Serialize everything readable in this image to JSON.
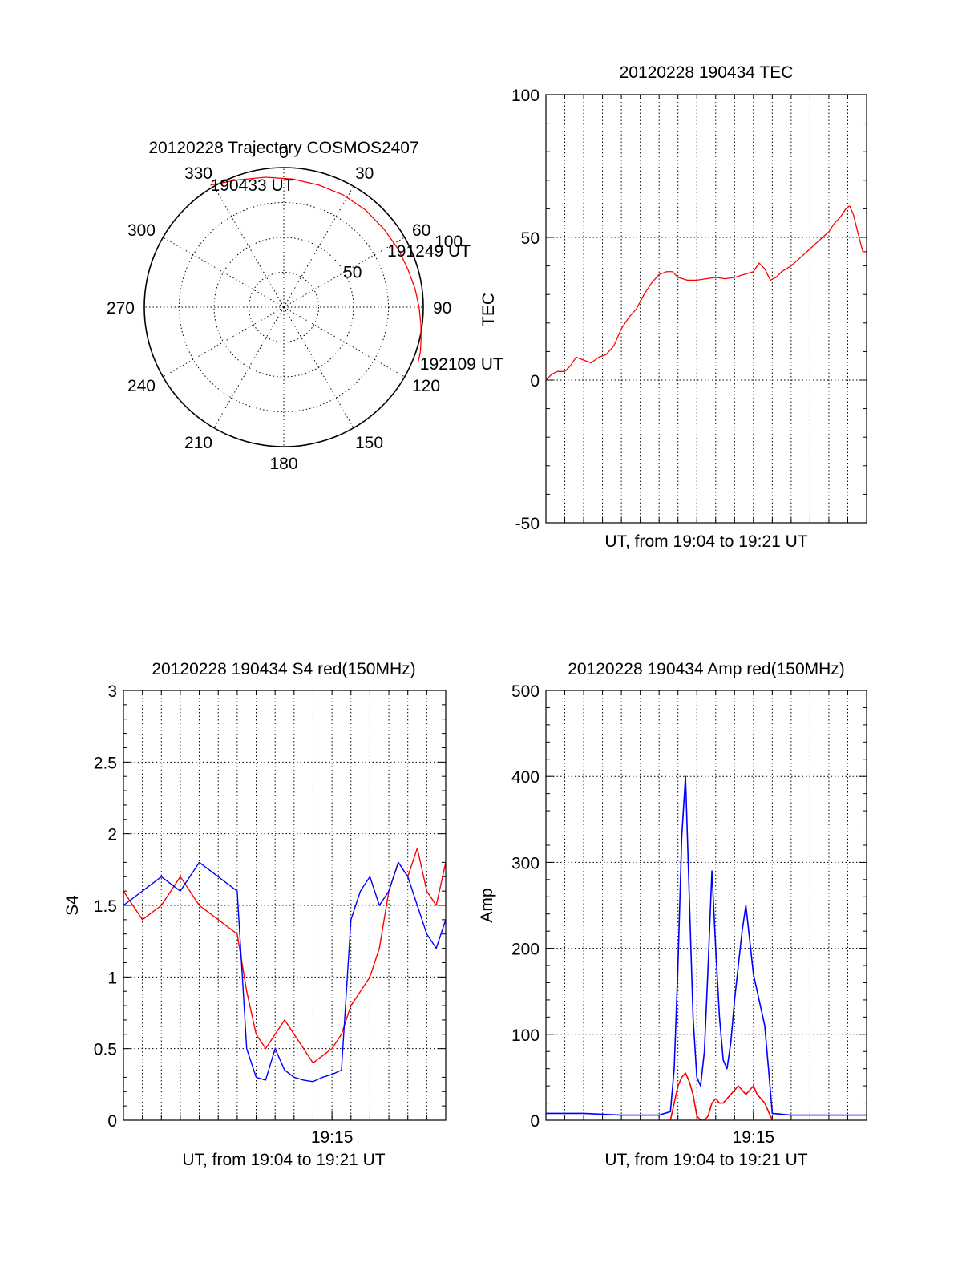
{
  "colors": {
    "red": "#ff0000",
    "blue": "#0000ff",
    "axis": "#000000"
  },
  "chart_data": [
    {
      "type": "polar",
      "title": "20120228 Trajectory COSMOS2407",
      "angle_labels": [
        "0",
        "30",
        "60",
        "90",
        "120",
        "150",
        "180",
        "210",
        "240",
        "270",
        "300",
        "330"
      ],
      "radial_labels": [
        "50",
        "100"
      ],
      "radial_range": [
        0,
        100
      ],
      "grid": true,
      "series": [
        {
          "color": "#ff0000",
          "azimuth_deg": [
            329,
            340,
            352,
            4,
            16,
            28,
            40,
            52,
            63,
            73,
            82,
            90,
            97,
            103,
            108,
            112
          ],
          "radius": [
            102,
            97,
            94,
            92,
            91,
            91,
            91,
            91,
            92,
            93,
            95,
            97,
            99,
            101,
            103,
            104
          ]
        }
      ],
      "annotations": [
        {
          "text": "190433 UT",
          "azimuth_deg": 329,
          "radius": 102
        },
        {
          "text": "191249 UT",
          "azimuth_deg": 60,
          "radius": 91
        },
        {
          "text": "192109 UT",
          "azimuth_deg": 112,
          "radius": 104
        }
      ]
    },
    {
      "type": "line",
      "title": "20120228 190434 TEC",
      "xlabel": "UT, from 19:04 to 19:21 UT",
      "ylabel": "TEC",
      "xlim_min": [
        0,
        17
      ],
      "ylim": [
        -50,
        100
      ],
      "yticks": [
        "-50",
        "0",
        "50",
        "100"
      ],
      "xticks": [],
      "grid": true,
      "series": [
        {
          "color": "#ff0000",
          "x_min": [
            0,
            0.3,
            0.6,
            1.0,
            1.3,
            1.6,
            2.0,
            2.4,
            2.8,
            3.2,
            3.6,
            4.0,
            4.4,
            4.8,
            5.2,
            5.6,
            6.0,
            6.4,
            6.7,
            7.0,
            7.5,
            8.0,
            8.5,
            9.0,
            9.5,
            10.0,
            10.5,
            11.0,
            11.3,
            11.6,
            11.9,
            12.2,
            12.5,
            13.0,
            13.5,
            14.0,
            14.5,
            15.0,
            15.3,
            15.6,
            15.9,
            16.1,
            16.3,
            16.6,
            16.8,
            17.0
          ],
          "values": [
            0,
            2,
            3,
            3,
            5,
            8,
            7,
            6,
            8,
            9,
            12,
            18,
            22,
            25,
            30,
            34,
            37,
            38,
            38,
            36,
            35,
            35,
            35.5,
            36,
            35.5,
            36,
            37,
            38,
            41,
            39,
            35,
            36,
            38,
            40,
            43,
            46,
            49,
            52,
            55,
            57,
            60,
            61,
            58,
            50,
            45,
            45
          ]
        }
      ]
    },
    {
      "type": "line",
      "title": "20120228 190434 S4 red(150MHz)",
      "xlabel": "UT, from 19:04 to 19:21 UT",
      "ylabel": "S4",
      "xlim_min": [
        0,
        17
      ],
      "ylim": [
        0,
        3
      ],
      "yticks": [
        "0",
        "0.5",
        "1",
        "1.5",
        "2",
        "2.5",
        "3"
      ],
      "xticks": [
        {
          "label": "19:15",
          "x_min": 11
        }
      ],
      "grid": true,
      "series": [
        {
          "color": "#ff0000",
          "x_min": [
            0,
            1,
            2,
            3,
            4,
            5,
            6,
            6.5,
            7,
            7.5,
            8,
            8.5,
            9,
            9.5,
            10,
            10.5,
            11,
            11.5,
            12,
            12.5,
            13,
            13.5,
            14,
            14.5,
            15,
            15.5,
            16,
            16.5,
            17
          ],
          "values": [
            1.6,
            1.4,
            1.5,
            1.7,
            1.5,
            1.4,
            1.3,
            0.9,
            0.6,
            0.5,
            0.6,
            0.7,
            0.6,
            0.5,
            0.4,
            0.45,
            0.5,
            0.6,
            0.8,
            0.9,
            1.0,
            1.2,
            1.6,
            1.8,
            1.7,
            1.9,
            1.6,
            1.5,
            1.8
          ]
        },
        {
          "color": "#0000ff",
          "x_min": [
            0,
            1,
            2,
            3,
            4,
            5,
            6,
            6.5,
            7,
            7.5,
            8,
            8.5,
            9,
            9.5,
            10,
            10.5,
            11,
            11.5,
            12,
            12.5,
            13,
            13.5,
            14,
            14.5,
            15,
            15.5,
            16,
            16.5,
            17
          ],
          "values": [
            1.5,
            1.6,
            1.7,
            1.6,
            1.8,
            1.7,
            1.6,
            0.5,
            0.3,
            0.28,
            0.5,
            0.35,
            0.3,
            0.28,
            0.27,
            0.3,
            0.32,
            0.35,
            1.4,
            1.6,
            1.7,
            1.5,
            1.6,
            1.8,
            1.7,
            1.5,
            1.3,
            1.2,
            1.4
          ]
        }
      ]
    },
    {
      "type": "line",
      "title": "20120228 190434 Amp red(150MHz)",
      "xlabel": "UT, from 19:04 to 19:21 UT",
      "ylabel": "Amp",
      "xlim_min": [
        0,
        17
      ],
      "ylim": [
        0,
        500
      ],
      "yticks": [
        "0",
        "100",
        "200",
        "300",
        "400",
        "500"
      ],
      "xticks": [
        {
          "label": "19:15",
          "x_min": 11
        }
      ],
      "grid": true,
      "series": [
        {
          "color": "#0000ff",
          "x_min": [
            0,
            2,
            4,
            6,
            6.6,
            6.8,
            7.0,
            7.2,
            7.4,
            7.6,
            7.8,
            8.0,
            8.2,
            8.4,
            8.6,
            8.8,
            9.0,
            9.2,
            9.4,
            9.6,
            9.8,
            10.0,
            10.2,
            10.4,
            10.6,
            10.8,
            11.0,
            11.2,
            11.4,
            11.6,
            11.8,
            12.0,
            13,
            15,
            17
          ],
          "values": [
            8,
            8,
            6,
            6,
            10,
            60,
            180,
            330,
            400,
            260,
            120,
            50,
            40,
            80,
            180,
            290,
            200,
            120,
            70,
            60,
            90,
            140,
            180,
            220,
            250,
            210,
            170,
            150,
            130,
            110,
            60,
            8,
            6,
            6,
            6
          ]
        },
        {
          "color": "#ff0000",
          "x_min": [
            6.6,
            6.8,
            7.0,
            7.2,
            7.4,
            7.6,
            7.8,
            8.0,
            8.2,
            8.4,
            8.6,
            8.8,
            9.0,
            9.2,
            9.4,
            9.6,
            9.8,
            10.0,
            10.2,
            10.4,
            10.6,
            10.8,
            11.0,
            11.2,
            11.4,
            11.6,
            11.8,
            12.0
          ],
          "values": [
            0,
            20,
            40,
            50,
            55,
            45,
            30,
            5,
            0,
            0,
            5,
            20,
            25,
            20,
            20,
            25,
            30,
            35,
            40,
            35,
            30,
            35,
            40,
            30,
            25,
            20,
            10,
            0
          ]
        }
      ]
    }
  ]
}
